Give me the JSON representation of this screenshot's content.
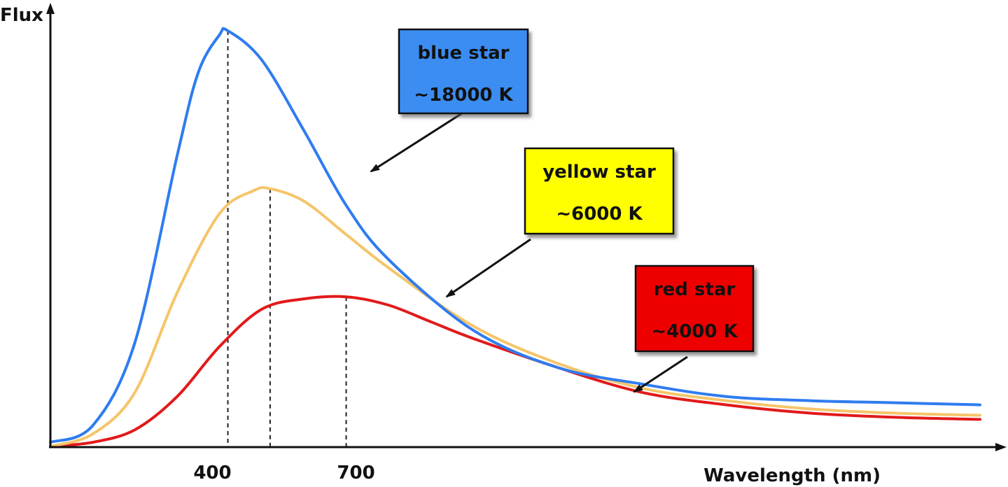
{
  "chart_data": {
    "type": "line",
    "title": "",
    "xlabel": "Wavelength (nm)",
    "ylabel": "Flux",
    "x_ticks": [
      {
        "value": 400,
        "label": "400"
      },
      {
        "value": 700,
        "label": "700"
      }
    ],
    "xlim": [
      0,
      2200
    ],
    "ylim": [
      0,
      1
    ],
    "grid": false,
    "legend": "none",
    "series": [
      {
        "name": "blue star",
        "temperature": "~18000 K",
        "color": "#2f7cf0",
        "peak_x": 420,
        "peak_flux": 1.0,
        "x": [
          0,
          100,
          200,
          300,
          350,
          400,
          420,
          500,
          600,
          700,
          800,
          1000,
          1200,
          1400,
          1600,
          1800,
          2000,
          2200
        ],
        "y": [
          0.01,
          0.05,
          0.25,
          0.7,
          0.9,
          0.99,
          1.0,
          0.93,
          0.76,
          0.58,
          0.45,
          0.28,
          0.19,
          0.15,
          0.12,
          0.11,
          0.105,
          0.1
        ]
      },
      {
        "name": "yellow star",
        "temperature": "~6000 K",
        "color": "#f5c56a",
        "peak_x": 520,
        "peak_flux": 0.62,
        "x": [
          0,
          100,
          200,
          300,
          400,
          480,
          520,
          600,
          700,
          800,
          1000,
          1200,
          1400,
          1600,
          1800,
          2000,
          2200
        ],
        "y": [
          0.0,
          0.03,
          0.13,
          0.37,
          0.56,
          0.615,
          0.62,
          0.59,
          0.51,
          0.43,
          0.29,
          0.2,
          0.14,
          0.11,
          0.09,
          0.08,
          0.075
        ]
      },
      {
        "name": "red star",
        "temperature": "~4000 K",
        "color": "#e11a1a",
        "peak_x": 700,
        "peak_flux": 0.36,
        "x": [
          0,
          100,
          200,
          300,
          400,
          500,
          600,
          700,
          800,
          900,
          1000,
          1200,
          1400,
          1600,
          1800,
          2000,
          2200
        ],
        "y": [
          0.0,
          0.01,
          0.04,
          0.12,
          0.24,
          0.33,
          0.355,
          0.36,
          0.34,
          0.3,
          0.26,
          0.19,
          0.13,
          0.1,
          0.08,
          0.07,
          0.065
        ]
      }
    ],
    "annotations": [
      {
        "series": "blue star",
        "line1": "blue star",
        "line2": "~18000 K",
        "color": "#3a8df2",
        "text_color": "#111111",
        "pointer_x": 780
      },
      {
        "series": "yellow star",
        "line1": "yellow star",
        "line2": "~6000 K",
        "color": "#ffff00",
        "text_color": "#111111",
        "pointer_x": 960
      },
      {
        "series": "red star",
        "line1": "red star",
        "line2": "~4000 K",
        "color": "#ee0000",
        "text_color": "#111111",
        "pointer_x": 1370
      }
    ]
  }
}
